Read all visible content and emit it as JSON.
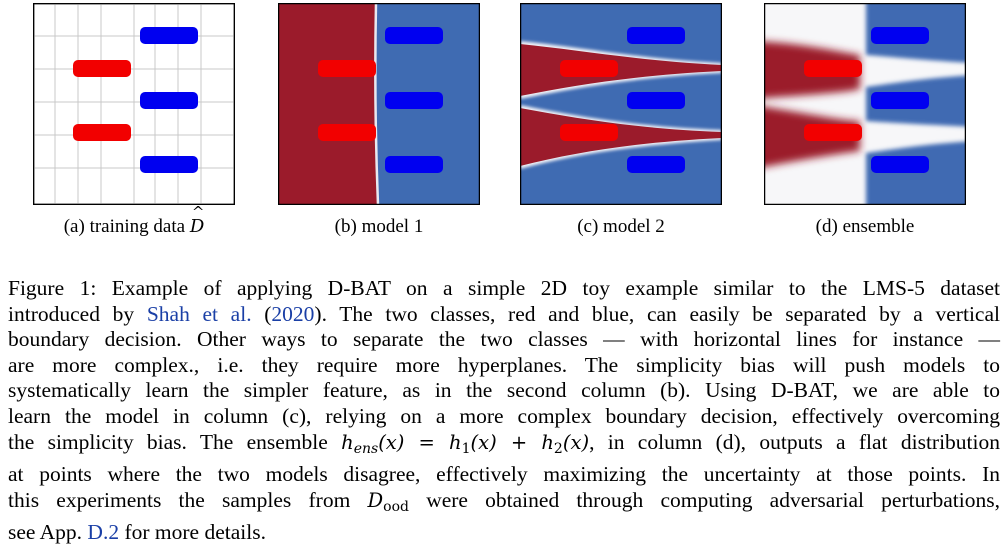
{
  "panels": [
    {
      "id": "a",
      "caption_prefix": "(a) training data ",
      "caption_symbol": "D",
      "caption_hat": "^"
    },
    {
      "id": "b",
      "caption": "(b) model 1"
    },
    {
      "id": "c",
      "caption": "(c) model 2"
    },
    {
      "id": "d",
      "caption": "(d) ensemble"
    }
  ],
  "colors": {
    "red_points": "#f20000",
    "blue_points": "#0000f0",
    "dark_red_region": "#9b1b2b",
    "blue_region": "#3f6bb2",
    "grid": "#c8c8c8",
    "citation": "#1a3fa6"
  },
  "caption": {
    "l1": "Figure 1: Example of applying D-BAT on a simple 2D toy example similar to the LMS-5 dataset",
    "l2_pre": "introduced by ",
    "l2_cite_name": "Shah et al.",
    "l2_open": " (",
    "l2_cite_year": "2020",
    "l2_post": "). The two classes, red and blue, can easily be separated by a vertical",
    "l3": "boundary decision. Other ways to separate the two classes — with horizontal lines for instance —",
    "l4": "are more complex., i.e. they require more hyperplanes. The simplicity bias will push models to",
    "l5": "systematically learn the simpler feature, as in the second column (b). Using D-BAT, we are able to",
    "l6": "learn the model in column (c), relying on a more complex boundary decision, effectively overcoming",
    "l7_pre": "the simplicity bias. The ensemble ",
    "l7_h": "h",
    "l7_ens": "ens",
    "l7_x1": "(x) = ",
    "l7_h1": "h",
    "l7_1": "1",
    "l7_x2": "(x) + ",
    "l7_h2": "h",
    "l7_2": "2",
    "l7_x3": "(x)",
    "l7_post": ", in column (d), outputs a flat distribution",
    "l8": "at points where the two models disagree, effectively maximizing the uncertainty at those points. In",
    "l9_pre": "this experiments the samples from ",
    "l9_D": "D",
    "l9_ood": "ood",
    "l9_post": " were obtained through computing adversarial perturbations,",
    "l10_pre": "see App. ",
    "l10_ref": "D.2",
    "l10_post": " for more details."
  }
}
